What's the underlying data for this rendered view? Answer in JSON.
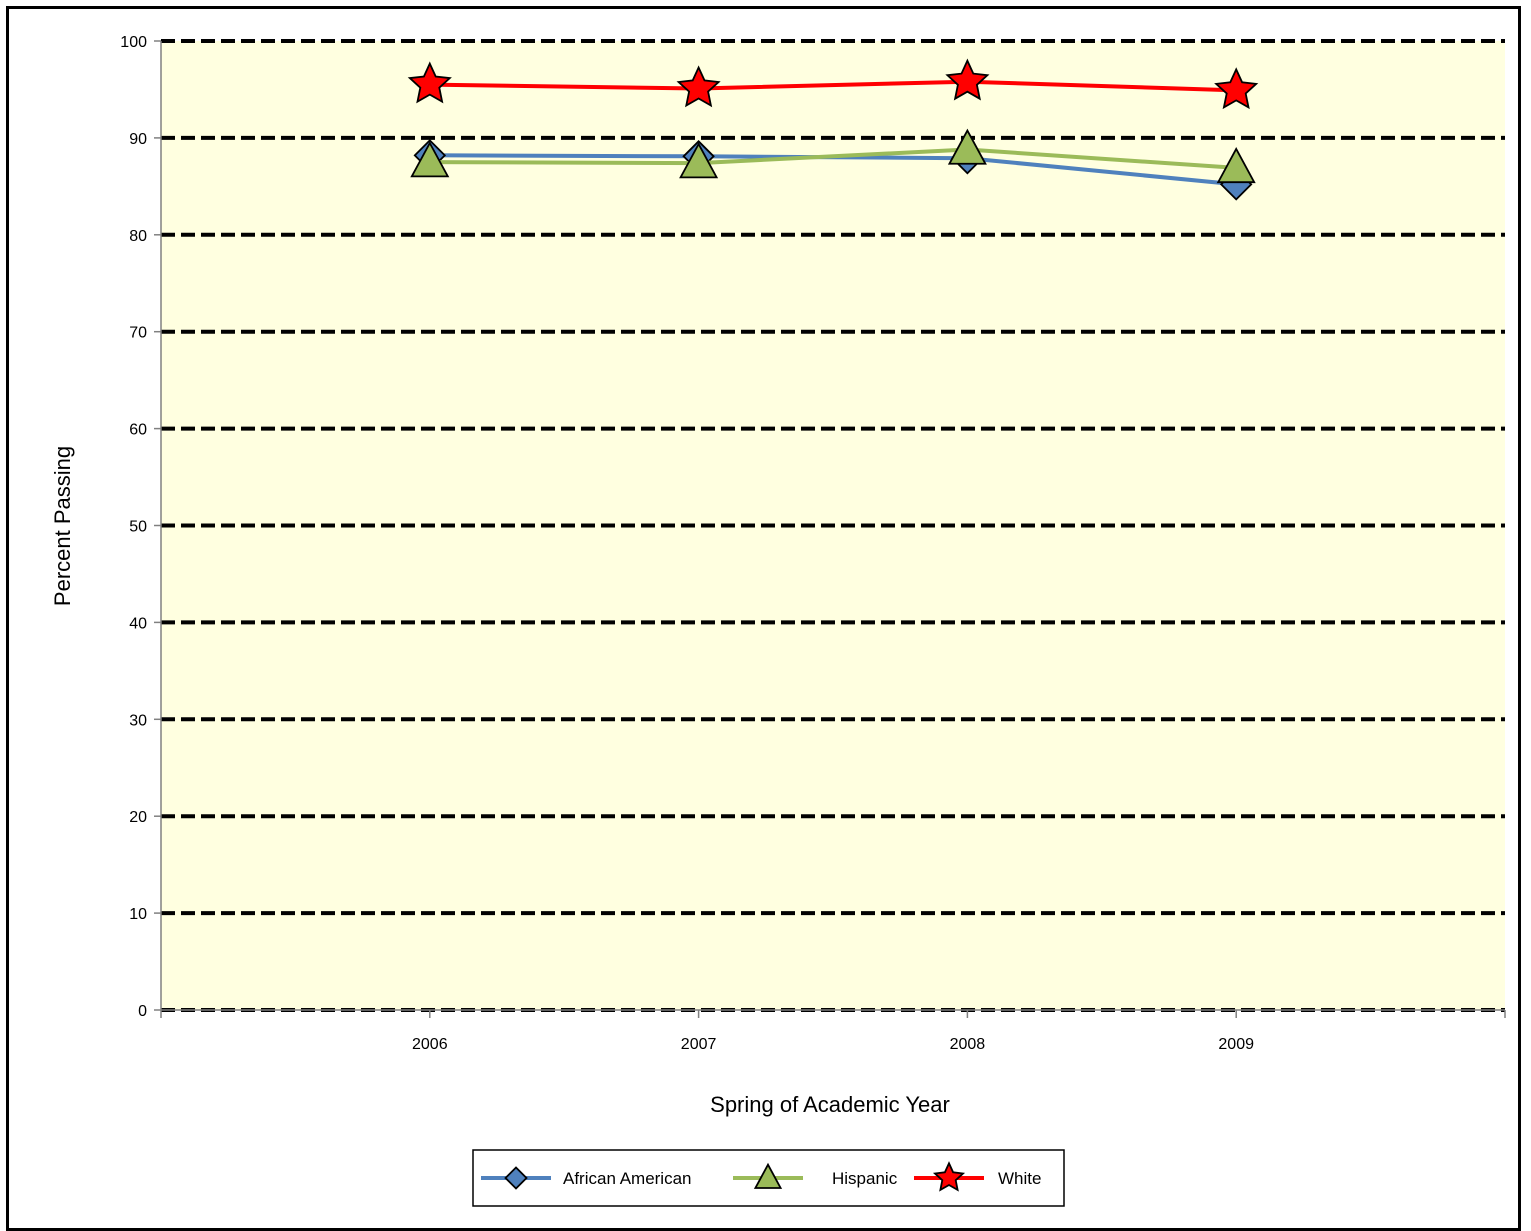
{
  "chart_data": {
    "type": "line",
    "title": "",
    "xlabel": "Spring of Academic Year",
    "ylabel": "Percent Passing",
    "categories": [
      "2006",
      "2007",
      "2008",
      "2009"
    ],
    "y_ticks": [
      "0",
      "10",
      "20",
      "30",
      "40",
      "50",
      "60",
      "70",
      "80",
      "90",
      "100"
    ],
    "ylim": [
      0,
      100
    ],
    "grid": "dashed horizontal",
    "plot_background": "#FFFFE0",
    "legend_position": "bottom",
    "series": [
      {
        "name": "African American",
        "values": [
          88.2,
          88.1,
          87.9,
          85.2
        ],
        "color": "#4F81BD",
        "marker": "diamond"
      },
      {
        "name": "Hispanic",
        "values": [
          87.5,
          87.4,
          88.8,
          86.9
        ],
        "color": "#9BBB59",
        "marker": "triangle"
      },
      {
        "name": "White",
        "values": [
          95.5,
          95.1,
          95.8,
          94.9
        ],
        "color": "#FF0000",
        "marker": "star"
      }
    ]
  }
}
